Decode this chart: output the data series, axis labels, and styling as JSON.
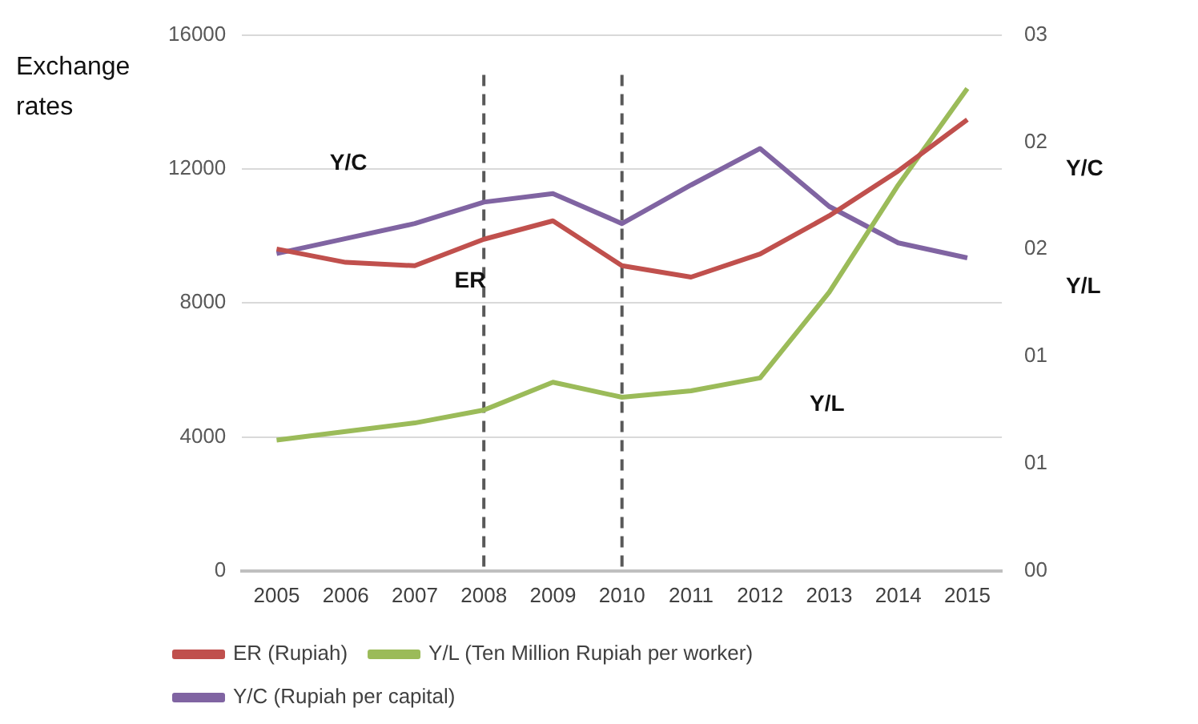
{
  "chart_data": {
    "type": "line",
    "ylabel": "Exchange rates",
    "categories": [
      "2005",
      "2006",
      "2007",
      "2008",
      "2009",
      "2010",
      "2011",
      "2012",
      "2013",
      "2014",
      "2015"
    ],
    "series": [
      {
        "name": "ER (Rupiah)",
        "color": "#c0504d",
        "values": [
          9610,
          9210,
          9110,
          9900,
          10450,
          9110,
          8770,
          9460,
          10600,
          11940,
          13470
        ]
      },
      {
        "name": "Y/L (Ten Million Rupiah per worker)",
        "color": "#9bbb59",
        "axis": "y2",
        "values": [
          0.61,
          0.65,
          0.69,
          0.75,
          0.88,
          0.81,
          0.84,
          0.9,
          1.3,
          1.8,
          2.25
        ]
      },
      {
        "name": "Y/C (Rupiah per capital)",
        "color": "#8064a2",
        "axis": "y2",
        "values": [
          1.48,
          1.55,
          1.62,
          1.72,
          1.76,
          1.62,
          1.8,
          1.97,
          1.7,
          1.53,
          1.46
        ]
      }
    ],
    "y2lim": [
      0,
      2.5
    ],
    "y2ticks": [
      {
        "value": 0,
        "label": "00"
      },
      {
        "value": 0.5,
        "label": "01"
      },
      {
        "value": 1,
        "label": "01"
      },
      {
        "value": 1.5,
        "label": "02"
      },
      {
        "value": 2,
        "label": "02"
      },
      {
        "value": 2.5,
        "label": "03"
      }
    ],
    "ylim": [
      0,
      16000
    ],
    "yticks": [
      0,
      4000,
      8000,
      12000,
      16000
    ],
    "ref_lines": [
      {
        "axis": "x",
        "value": "2008",
        "color": "#595959",
        "line_style": "dashed"
      },
      {
        "axis": "x",
        "value": "2010",
        "color": "#595959",
        "line_style": "dashed"
      }
    ],
    "annotations": [
      "Y/C",
      "ER",
      "Y/L",
      "Y/C",
      "Y/L"
    ],
    "grid": "y",
    "legend": "bottom",
    "line_style": "solid",
    "marker": "none"
  }
}
